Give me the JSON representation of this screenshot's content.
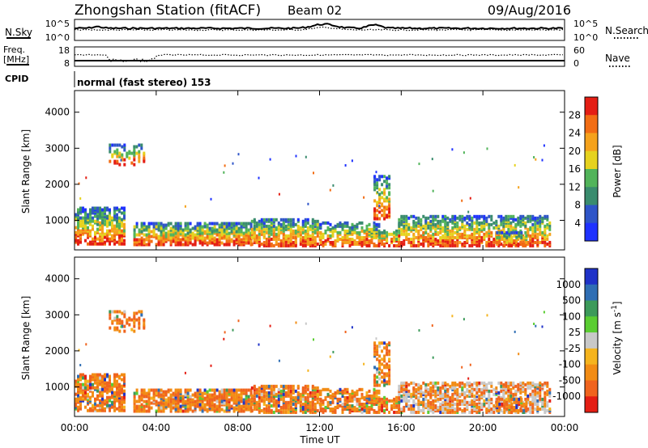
{
  "header": {
    "title": "Zhongshan Station (fitACF)",
    "beam": "Beam 02",
    "date": "09/Aug/2016"
  },
  "nsky_panel": {
    "left_label": "N.Sky",
    "right_label": "N.Search",
    "left_ticks": [
      "10^5",
      "10^0"
    ],
    "right_ticks": [
      "10^5",
      "10^0"
    ]
  },
  "freq_panel": {
    "left_label": "Freq.",
    "left_unit": "[MHz]",
    "right_label": "Nave",
    "left_ticks": [
      "18",
      "8"
    ],
    "right_ticks": [
      "60",
      "0"
    ]
  },
  "cpid_panel": {
    "label": "CPID",
    "text": "normal (fast stereo) 153"
  },
  "chart_data": [
    {
      "type": "heatmap",
      "name": "power",
      "ylabel": "Slant Range [km]",
      "yticks": [
        "1000",
        "2000",
        "3000",
        "4000"
      ],
      "colorbar_label": "Power [dB]",
      "colorbar_ticks": [
        "4",
        "8",
        "12",
        "16",
        "20",
        "24",
        "28"
      ],
      "colorbar_colors": [
        "#1f32ff",
        "#2f55c8",
        "#3a8c6e",
        "#52b45a",
        "#e6d21e",
        "#f5a21c",
        "#f26d14",
        "#e41e14"
      ]
    },
    {
      "type": "heatmap",
      "name": "velocity",
      "ylabel": "Slant Range [km]",
      "yticks": [
        "1000",
        "2000",
        "3000",
        "4000"
      ],
      "xlabel": "Time UT",
      "xticks": [
        "00:00",
        "04:00",
        "08:00",
        "12:00",
        "16:00",
        "20:00",
        "00:00"
      ],
      "colorbar_label": "Velocity [m s^-1]",
      "colorbar_ticks": [
        "1000",
        "500",
        "100",
        "25",
        "-25",
        "-100",
        "-500",
        "-1000"
      ],
      "colorbar_colors": [
        "#1f32c8",
        "#2f6eb4",
        "#3c9a5a",
        "#5acd32",
        "#c8c8c8",
        "#f5b41e",
        "#f28c14",
        "#f0641e",
        "#e41e14"
      ]
    }
  ]
}
